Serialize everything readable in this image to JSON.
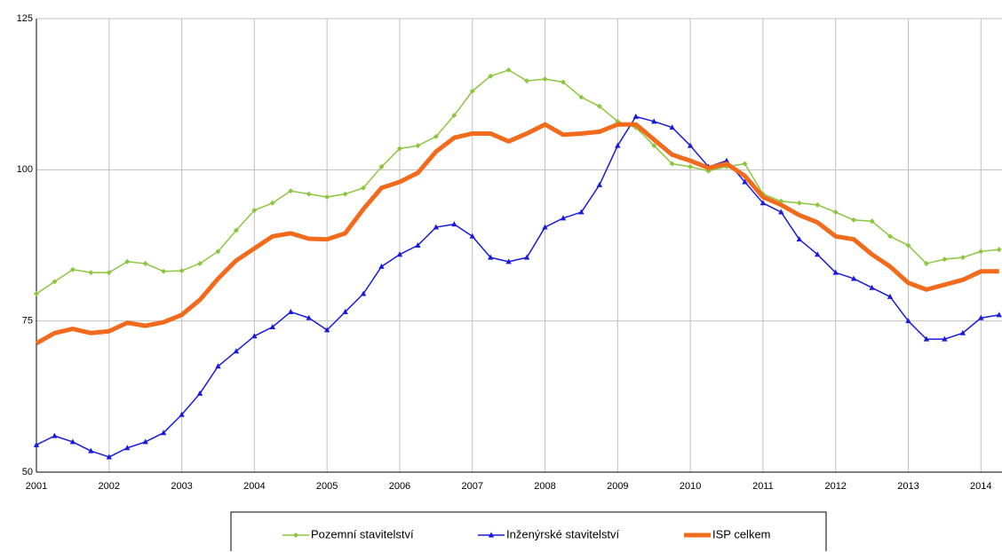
{
  "chart_data": {
    "type": "line",
    "x": [
      2001,
      2001.25,
      2001.5,
      2001.75,
      2002,
      2002.25,
      2002.5,
      2002.75,
      2003,
      2003.25,
      2003.5,
      2003.75,
      2004,
      2004.25,
      2004.5,
      2004.75,
      2005,
      2005.25,
      2005.5,
      2005.75,
      2006,
      2006.25,
      2006.5,
      2006.75,
      2007,
      2007.25,
      2007.5,
      2007.75,
      2008,
      2008.25,
      2008.5,
      2008.75,
      2009,
      2009.25,
      2009.5,
      2009.75,
      2010,
      2010.25,
      2010.5,
      2010.75,
      2011,
      2011.25,
      2011.5,
      2011.75,
      2012,
      2012.25,
      2012.5,
      2012.75,
      2013,
      2013.25,
      2013.5,
      2013.75,
      2014,
      2014.25
    ],
    "series": [
      {
        "name": "Pozemní stavitelství",
        "color": "#8cc63f",
        "marker": "diamond",
        "line_width": 1.5,
        "values": [
          79.5,
          81.5,
          83.5,
          83,
          83,
          84.8,
          84.5,
          83.2,
          83.3,
          84.5,
          86.5,
          90,
          93.3,
          94.5,
          96.5,
          96,
          95.5,
          96,
          97,
          100.5,
          103.5,
          104,
          105.5,
          109,
          113,
          115.5,
          116.5,
          114.7,
          115,
          114.5,
          112,
          110.5,
          108,
          107,
          104,
          101,
          100.5,
          99.8,
          100.5,
          101,
          96,
          94.8,
          94.5,
          94.2,
          93,
          91.7,
          91.5,
          89,
          87.5,
          84.5,
          85.2,
          85.5,
          86.5,
          86.8
        ]
      },
      {
        "name": "Inženýrské stavitelství",
        "color": "#1a1adb",
        "marker": "triangle",
        "line_width": 1.5,
        "values": [
          54.5,
          56,
          55,
          53.5,
          52.5,
          54,
          55,
          56.5,
          59.5,
          63,
          67.5,
          70,
          72.5,
          74,
          76.5,
          75.5,
          73.5,
          76.5,
          79.5,
          84,
          86,
          87.5,
          90.5,
          91,
          89,
          85.5,
          84.8,
          85.5,
          90.5,
          92,
          93,
          97.5,
          104,
          108.8,
          108,
          107,
          104,
          100.5,
          101.5,
          98,
          94.5,
          93,
          88.5,
          86,
          83,
          82,
          80.5,
          79,
          75,
          72,
          72,
          73,
          75.5,
          76
        ]
      },
      {
        "name": "ISP celkem",
        "color": "#f26a1b",
        "marker": null,
        "line_width": 5,
        "values": [
          71.3,
          73,
          73.7,
          73,
          73.3,
          74.7,
          74.2,
          74.8,
          76,
          78.5,
          82,
          85,
          87,
          89,
          89.5,
          88.6,
          88.5,
          89.5,
          93.5,
          97,
          98,
          99.5,
          103,
          105.3,
          106,
          106,
          104.7,
          106,
          107.5,
          105.8,
          106,
          106.3,
          107.5,
          107.5,
          105,
          102.5,
          101.5,
          100.3,
          101,
          99,
          95.5,
          94.2,
          92.5,
          91.3,
          89,
          88.5,
          86,
          84,
          81.3,
          80.2,
          81,
          81.8,
          83.2,
          83.2
        ]
      }
    ],
    "xlim": [
      2001,
      2014.29
    ],
    "xticks": [
      2001,
      2002,
      2003,
      2004,
      2005,
      2006,
      2007,
      2008,
      2009,
      2010,
      2011,
      2012,
      2013,
      2014
    ],
    "ylim": [
      50,
      125
    ],
    "yticks": [
      50,
      75,
      100,
      125
    ],
    "grid": true,
    "legend": "bottom"
  }
}
